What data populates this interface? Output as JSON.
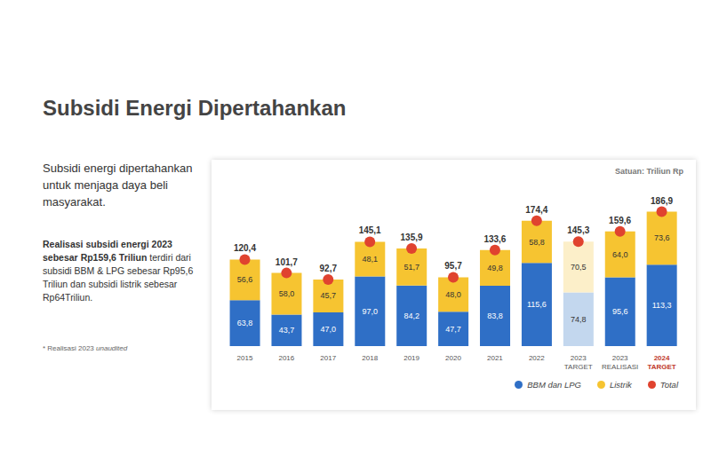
{
  "slide": {
    "title": "Subsidi Energi Dipertahankan",
    "body": "Subsidi energi dipertahankan untuk menjaga daya beli masyarakat.",
    "highlight": [
      {
        "text": "Realisasi subsidi energi",
        "bold": true
      },
      {
        "text": " 2023 sebesar ",
        "bold": true
      },
      {
        "text": "Rp159,6 Triliun",
        "bold": true
      },
      {
        "text": " terdiri dari subsidi BBM & LPG sebesar Rp95,6 Triliun dan subsidi listrik sebesar Rp64Triliun.",
        "bold": false
      }
    ],
    "note": [
      {
        "text": "* Realisasi 2023 ",
        "italic": false
      },
      {
        "text": "unaudited",
        "italic": true
      }
    ]
  },
  "chart_data": {
    "type": "bar",
    "subtitle": "Satuan: Triliun Rp",
    "stacked": true,
    "data_labels": true,
    "tick_labels": "x",
    "grid": false,
    "legend": "bottom-right",
    "ylim": [
      0,
      200
    ],
    "categories": [
      "2015",
      "2016",
      "2017",
      "2018",
      "2019",
      "2020",
      "2021",
      "2022",
      "2023 TARGET",
      "2023 REALISASI",
      "2024 TARGET"
    ],
    "series": [
      {
        "name": "BBM dan LPG",
        "type": "bar",
        "color": "#2f6fc6",
        "colors": [
          "#2f6fc6",
          "#2f6fc6",
          "#2f6fc6",
          "#2f6fc6",
          "#2f6fc6",
          "#2f6fc6",
          "#2f6fc6",
          "#2f6fc6",
          "#c3d7ee",
          "#2f6fc6",
          "#2f6fc6"
        ],
        "values": [
          63.8,
          43.7,
          47.0,
          97.0,
          84.2,
          47.7,
          83.8,
          115.6,
          74.8,
          95.6,
          113.3
        ],
        "value_labels": [
          "63,8",
          "43,7",
          "47,0",
          "97,0",
          "84,2",
          "47,7",
          "83,8",
          "115,6",
          "74,8",
          "95,6",
          "113,3"
        ]
      },
      {
        "name": "Listrik",
        "type": "bar",
        "color": "#f6c431",
        "colors": [
          "#f6c431",
          "#f6c431",
          "#f6c431",
          "#f6c431",
          "#f6c431",
          "#f6c431",
          "#f6c431",
          "#f6c431",
          "#fcefc9",
          "#f6c431",
          "#f6c431"
        ],
        "values": [
          56.6,
          58.0,
          45.7,
          48.1,
          51.7,
          48.0,
          49.8,
          58.8,
          70.5,
          64.0,
          73.6
        ],
        "value_labels": [
          "56,6",
          "58,0",
          "45,7",
          "48,1",
          "51,7",
          "48,0",
          "49,8",
          "58,8",
          "70,5",
          "64,0",
          "73,6"
        ]
      },
      {
        "name": "Total",
        "type": "scatter",
        "marker": "circle",
        "color": "#e0432f",
        "values": [
          120.4,
          101.7,
          92.7,
          145.1,
          135.9,
          95.7,
          133.6,
          174.4,
          145.3,
          159.6,
          186.9
        ],
        "value_labels": [
          "120,4",
          "101,7",
          "92,7",
          "145,1",
          "135,9",
          "95,7",
          "133,6",
          "174,4",
          "145,3",
          "159,6",
          "186,9"
        ]
      }
    ]
  }
}
